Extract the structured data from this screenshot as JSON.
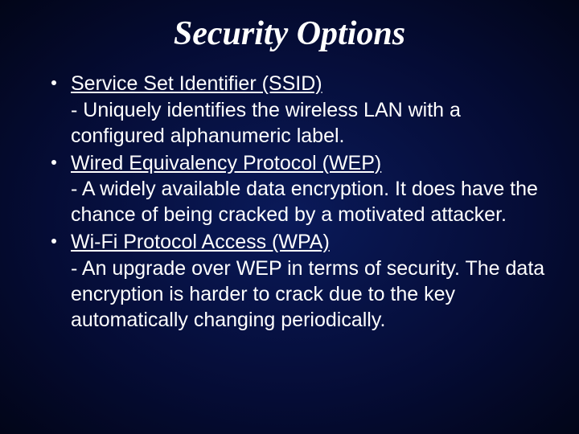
{
  "slide": {
    "title": "Security Options",
    "background_gradient": [
      "#0a1a5a",
      "#050c35",
      "#020518"
    ],
    "title_color": "#ffffff",
    "title_fontsize": 42,
    "body_color": "#ffffff",
    "body_fontsize": 25,
    "bullets": [
      {
        "heading": "Service Set Identifier (SSID)",
        "description": "- Uniquely identifies the wireless LAN with a configured alphanumeric label."
      },
      {
        "heading": "Wired Equivalency Protocol (WEP)",
        "description": "- A widely available data encryption. It does have the chance of being cracked by a motivated attacker."
      },
      {
        "heading": "Wi-Fi Protocol Access (WPA)",
        "description": "- An upgrade over WEP in terms of security. The data encryption is harder to crack due to the key automatically changing periodically."
      }
    ]
  }
}
